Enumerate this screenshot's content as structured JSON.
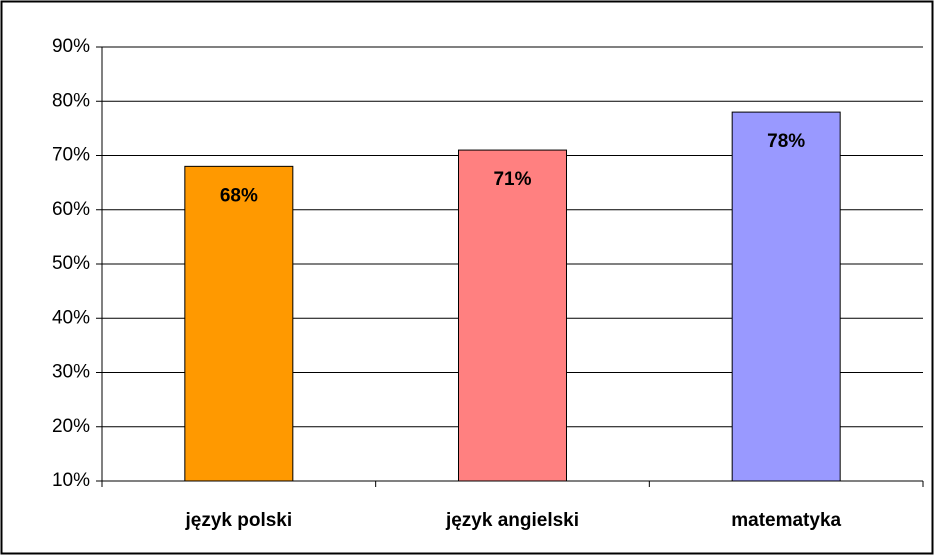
{
  "chart_data": {
    "type": "bar",
    "categories": [
      "język polski",
      "język angielski",
      "matematyka"
    ],
    "values": [
      68,
      71,
      78
    ],
    "value_labels": [
      "68%",
      "71%",
      "78%"
    ],
    "colors": [
      "#ff9900",
      "#ff8080",
      "#9999ff"
    ],
    "ylim": [
      10,
      90
    ],
    "yticks": [
      {
        "value": 10,
        "label": "10%"
      },
      {
        "value": 20,
        "label": "20%"
      },
      {
        "value": 30,
        "label": "30%"
      },
      {
        "value": 40,
        "label": "40%"
      },
      {
        "value": 50,
        "label": "50%"
      },
      {
        "value": 60,
        "label": "60%"
      },
      {
        "value": 70,
        "label": "70%"
      },
      {
        "value": 80,
        "label": "80%"
      },
      {
        "value": 90,
        "label": "90%"
      }
    ],
    "grid": true
  }
}
